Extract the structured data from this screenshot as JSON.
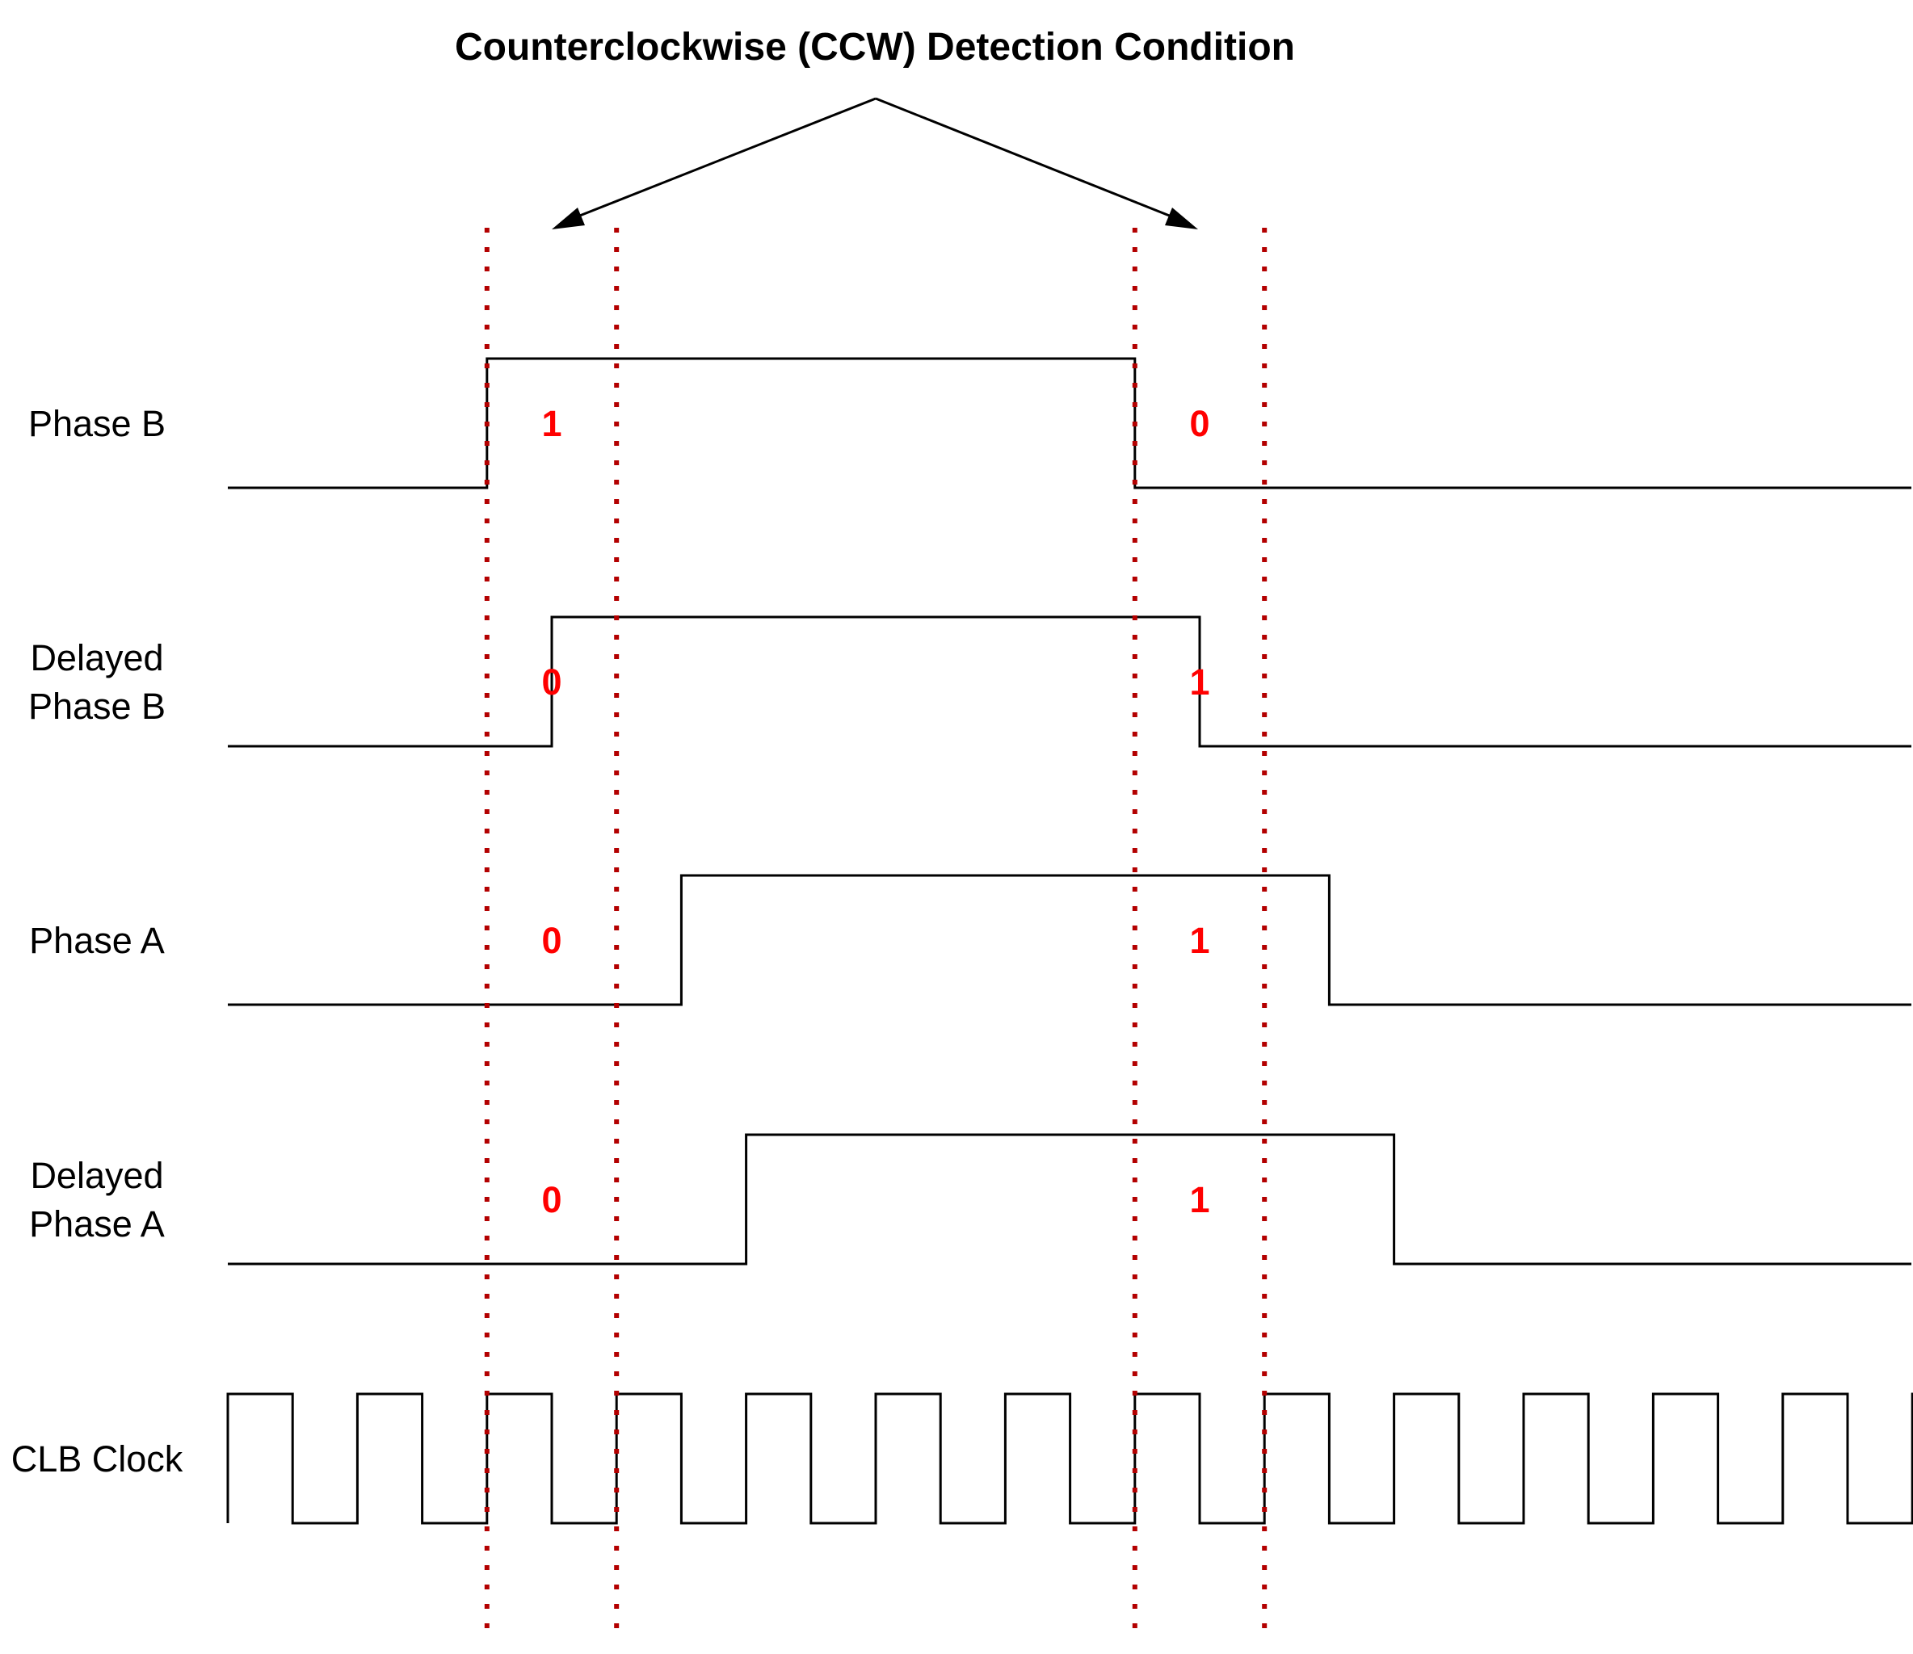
{
  "title": "Counterclockwise (CCW) Detection Condition",
  "colors": {
    "wave": "#000000",
    "marker": "#b30000",
    "bit": "#ff0000"
  },
  "signals": [
    {
      "label_lines": [
        "Phase B"
      ],
      "wave": "0000111111111100000000000000",
      "bits": [
        "1",
        "0"
      ]
    },
    {
      "label_lines": [
        "Delayed",
        "Phase B"
      ],
      "wave": "0000011111111110000000000000",
      "bits": [
        "0",
        "1"
      ]
    },
    {
      "label_lines": [
        "Phase A"
      ],
      "wave": "0000000111111111100000000000",
      "bits": [
        "0",
        "1"
      ]
    },
    {
      "label_lines": [
        "Delayed",
        "Phase A"
      ],
      "wave": "0000000011111111110000000000",
      "bits": [
        "0",
        "1"
      ]
    },
    {
      "label_lines": [
        "CLB Clock"
      ],
      "wave": "1010101010101010101010101010",
      "bits": []
    }
  ],
  "windows": [
    {
      "start": 4,
      "end": 6
    },
    {
      "start": 14,
      "end": 16
    }
  ]
}
